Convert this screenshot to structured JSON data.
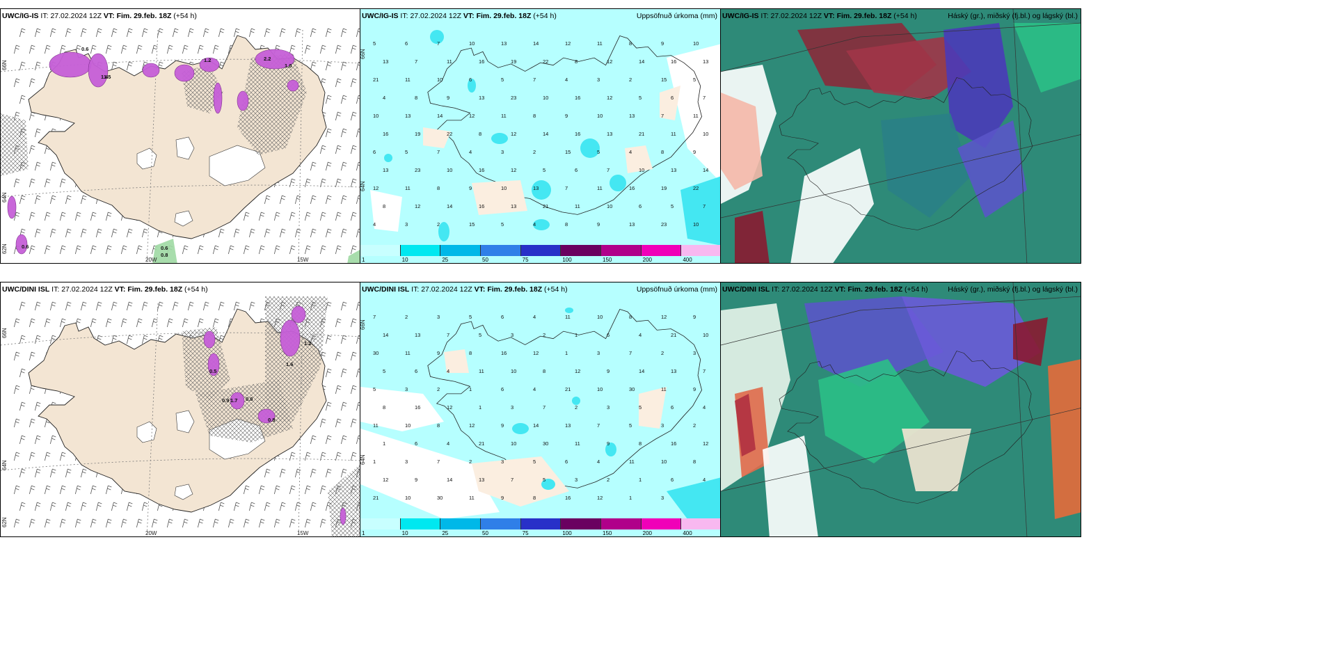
{
  "colors": {
    "land": "#f3e5d3",
    "cyan_bg": "#b6ffff",
    "cyan_mid": "#44e7f2",
    "magenta": "#c65fd8",
    "teal": "#2e8a78",
    "green": "#2bbf86",
    "blue": "#5a55c8",
    "red": "#a63a3a",
    "white": "#ffffff"
  },
  "panels": [
    {
      "model_label": "UWC/IG-IS",
      "it_label": "IT:",
      "it_value": "27.02.2024 12Z",
      "vt_label": "VT:",
      "vt_value": "Fim. 29.feb. 18Z",
      "lead": "(+54 h)",
      "right_label": "",
      "lon_labels": [
        "20W",
        "15W"
      ],
      "lat_labels": [
        "66N",
        "64N",
        "62N"
      ]
    },
    {
      "model_label": "UWC/IG-IS",
      "it_label": "IT:",
      "it_value": "27.02.2024 12Z",
      "vt_label": "VT:",
      "vt_value": "Fim. 29.feb. 18Z",
      "lead": "(+54 h)",
      "right_label": "Uppsöfnuð úrkoma (mm)",
      "lat_labels": [
        "66N",
        "64N"
      ]
    },
    {
      "model_label": "UWC/IG-IS",
      "it_label": "IT:",
      "it_value": "27.02.2024 12Z",
      "vt_label": "VT:",
      "vt_value": "Fim. 29.feb. 18Z",
      "lead": "(+54 h)",
      "right_label": "Háský (gr.), miðský (fj.bl.) og lágský (bl.)"
    },
    {
      "model_label": "UWC/DINI ISL",
      "it_label": "IT:",
      "it_value": "27.02.2024 12Z",
      "vt_label": "VT:",
      "vt_value": "Fim. 29.feb. 18Z",
      "lead": "(+54 h)",
      "right_label": "",
      "lon_labels": [
        "20W",
        "15W"
      ],
      "lat_labels": [
        "66N",
        "64N",
        "62N"
      ]
    },
    {
      "model_label": "UWC/DINI ISL",
      "it_label": "IT:",
      "it_value": "27.02.2024 12Z",
      "vt_label": "VT:",
      "vt_value": "Fim. 29.feb. 18Z",
      "lead": "(+54 h)",
      "right_label": "Uppsöfnuð úrkoma (mm)",
      "lat_labels": [
        "66N",
        "64N"
      ]
    },
    {
      "model_label": "UWC/DINI ISL",
      "it_label": "IT:",
      "it_value": "27.02.2024 12Z",
      "vt_label": "VT:",
      "vt_value": "Fim. 29.feb. 18Z",
      "lead": "(+54 h)",
      "right_label": "Háský (gr.), miðský (fj.bl.) og lágský (bl.)"
    }
  ],
  "colorbar": {
    "ticks": [
      "1",
      "10",
      "25",
      "50",
      "75",
      "100",
      "150",
      "200",
      "400"
    ],
    "colors": [
      "#c8ffff",
      "#00e8f0",
      "#00b8e8",
      "#2f7fe8",
      "#2830c8",
      "#6a0060",
      "#b0008a",
      "#f000b8",
      "#f8b8f0"
    ]
  },
  "precip_top": [
    "5",
    "6",
    "7",
    "10",
    "13",
    "14",
    "12",
    "11",
    "8",
    "9",
    "10",
    "13",
    "7",
    "11",
    "16",
    "19",
    "22",
    "8",
    "12",
    "14",
    "16",
    "13",
    "21",
    "11",
    "10",
    "6",
    "5",
    "7",
    "4",
    "3",
    "2",
    "15",
    "5",
    "4",
    "8",
    "9",
    "13",
    "23",
    "10",
    "16",
    "12"
  ],
  "precip_bottom": [
    "7",
    "2",
    "3",
    "5",
    "6",
    "4",
    "11",
    "10",
    "8",
    "12",
    "9",
    "14",
    "13",
    "7",
    "5",
    "3",
    "2",
    "1",
    "6",
    "4",
    "21",
    "10",
    "30",
    "11",
    "9",
    "8",
    "16",
    "12",
    "1",
    "3"
  ],
  "pressure_labels_top": [
    "0.6",
    "1.5",
    "1.2",
    "2.2",
    "1.0",
    "0.6",
    "0.8",
    "1.4",
    "0.6"
  ],
  "pressure_labels_bottom": [
    "1.7",
    "0.8",
    "0.8",
    "1.6",
    "0.5",
    "0.9",
    "1.2"
  ]
}
